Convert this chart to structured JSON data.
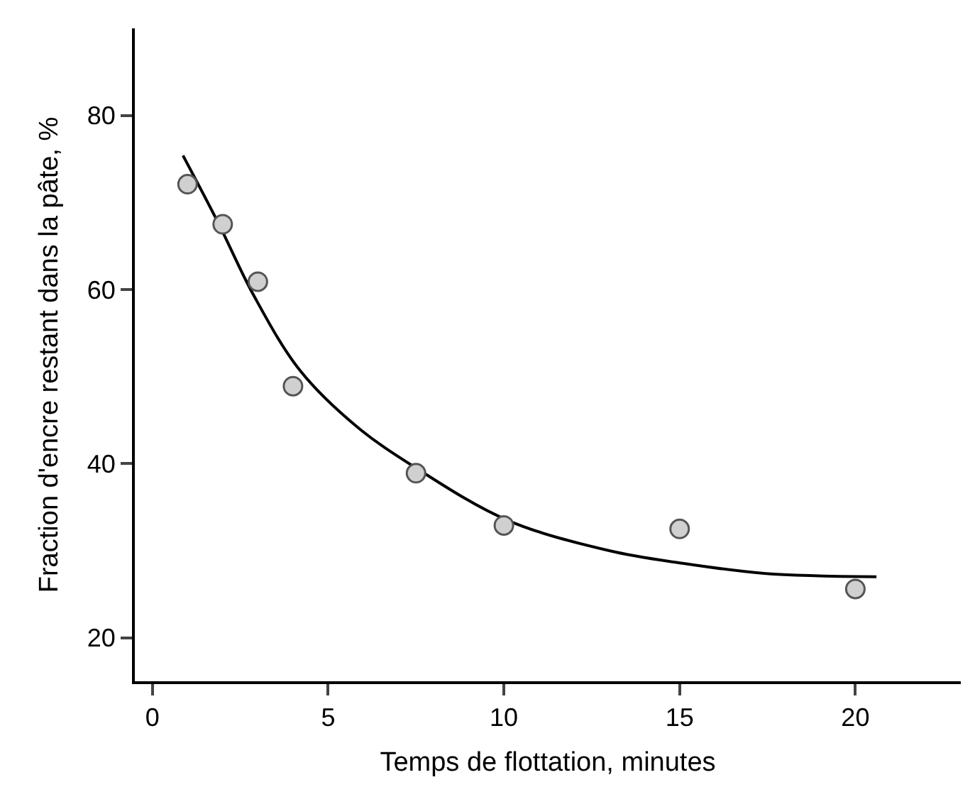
{
  "chart_data": {
    "type": "scatter",
    "xlabel": "Temps de flottation, minutes",
    "ylabel": "Fraction d'encre restant dans la pâte, %",
    "xlim": [
      -0.5,
      23
    ],
    "ylim": [
      15,
      90
    ],
    "xticks": [
      0,
      5,
      10,
      15,
      20
    ],
    "yticks": [
      20,
      40,
      60,
      80
    ],
    "marker": "circle",
    "series": [
      {
        "type": "line",
        "color": "#000000",
        "marker": "none",
        "x": [
          0.87,
          1.88,
          2.9,
          4.2,
          5.8,
          7.5,
          10.1,
          13.0,
          15.0,
          17.4,
          20.6
        ],
        "values": [
          75.4,
          67.6,
          59.2,
          50.7,
          44.3,
          39.5,
          33.5,
          30.0,
          28.6,
          27.4,
          27.0
        ]
      },
      {
        "color": "#d0d0d0",
        "x": [
          1,
          2,
          3,
          4,
          7.5,
          10,
          15,
          20
        ],
        "values": [
          72.1,
          67.5,
          60.9,
          48.9,
          38.9,
          32.9,
          32.5,
          25.6
        ]
      }
    ]
  }
}
